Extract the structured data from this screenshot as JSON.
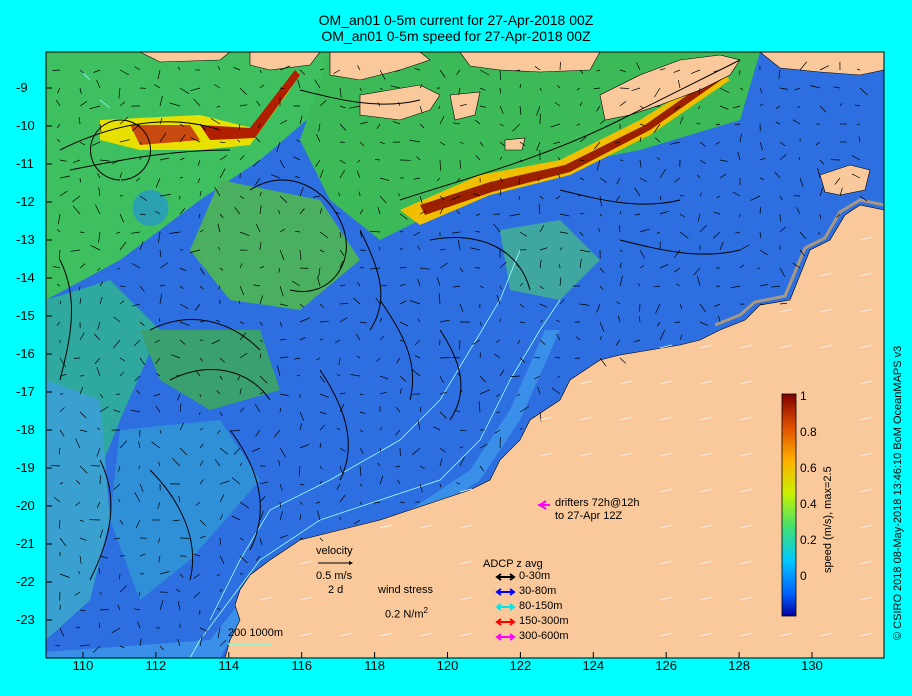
{
  "title": {
    "line1": "OM_an01 0-5m current for 27-Apr-2018 00Z",
    "line2": "OM_an01 0-5m speed for 27-Apr-2018 00Z"
  },
  "axes": {
    "y_ticks": [
      "-9",
      "-10",
      "-11",
      "-12",
      "-13",
      "-14",
      "-15",
      "-16",
      "-17",
      "-18",
      "-19",
      "-20",
      "-21",
      "-22",
      "-23"
    ],
    "x_ticks": [
      "110",
      "112",
      "114",
      "116",
      "118",
      "120",
      "122",
      "124",
      "126",
      "128",
      "130"
    ]
  },
  "colorbar": {
    "ticks": [
      "1",
      "0.8",
      "0.6",
      "0.4",
      "0.2",
      "0"
    ],
    "label": "speed (m/s),  max=2.5"
  },
  "credit": "© CSIRO 2018   08-May-2018 13:46:10 BoM OceanMAPS v3",
  "legend": {
    "velocity_title": "velocity",
    "velocity_scale": "0.5 m/s",
    "velocity_time": "2 d",
    "wind_title": "wind stress",
    "wind_scale": "0.2 N/m",
    "wind_sup": "2",
    "drifters_line1": "drifters 72h@12h",
    "drifters_line2": "to 27-Apr 12Z",
    "adcp_title": "ADCP z avg",
    "adcp_items": [
      {
        "label": "0-30m",
        "color": "#000000"
      },
      {
        "label": "30-80m",
        "color": "#0000ff"
      },
      {
        "label": "80-150m",
        "color": "#00e5e5"
      },
      {
        "label": "150-300m",
        "color": "#ff0000"
      },
      {
        "label": "300-600m",
        "color": "#ff00ff"
      }
    ],
    "isobaths": "200  1000m"
  },
  "colors": {
    "land": "#f9c89b",
    "ocean_low": "#1e5fe0",
    "ocean_mid": "#3fbf4f",
    "ocean_high": "#8b1a00",
    "frame": "#00ffff"
  }
}
